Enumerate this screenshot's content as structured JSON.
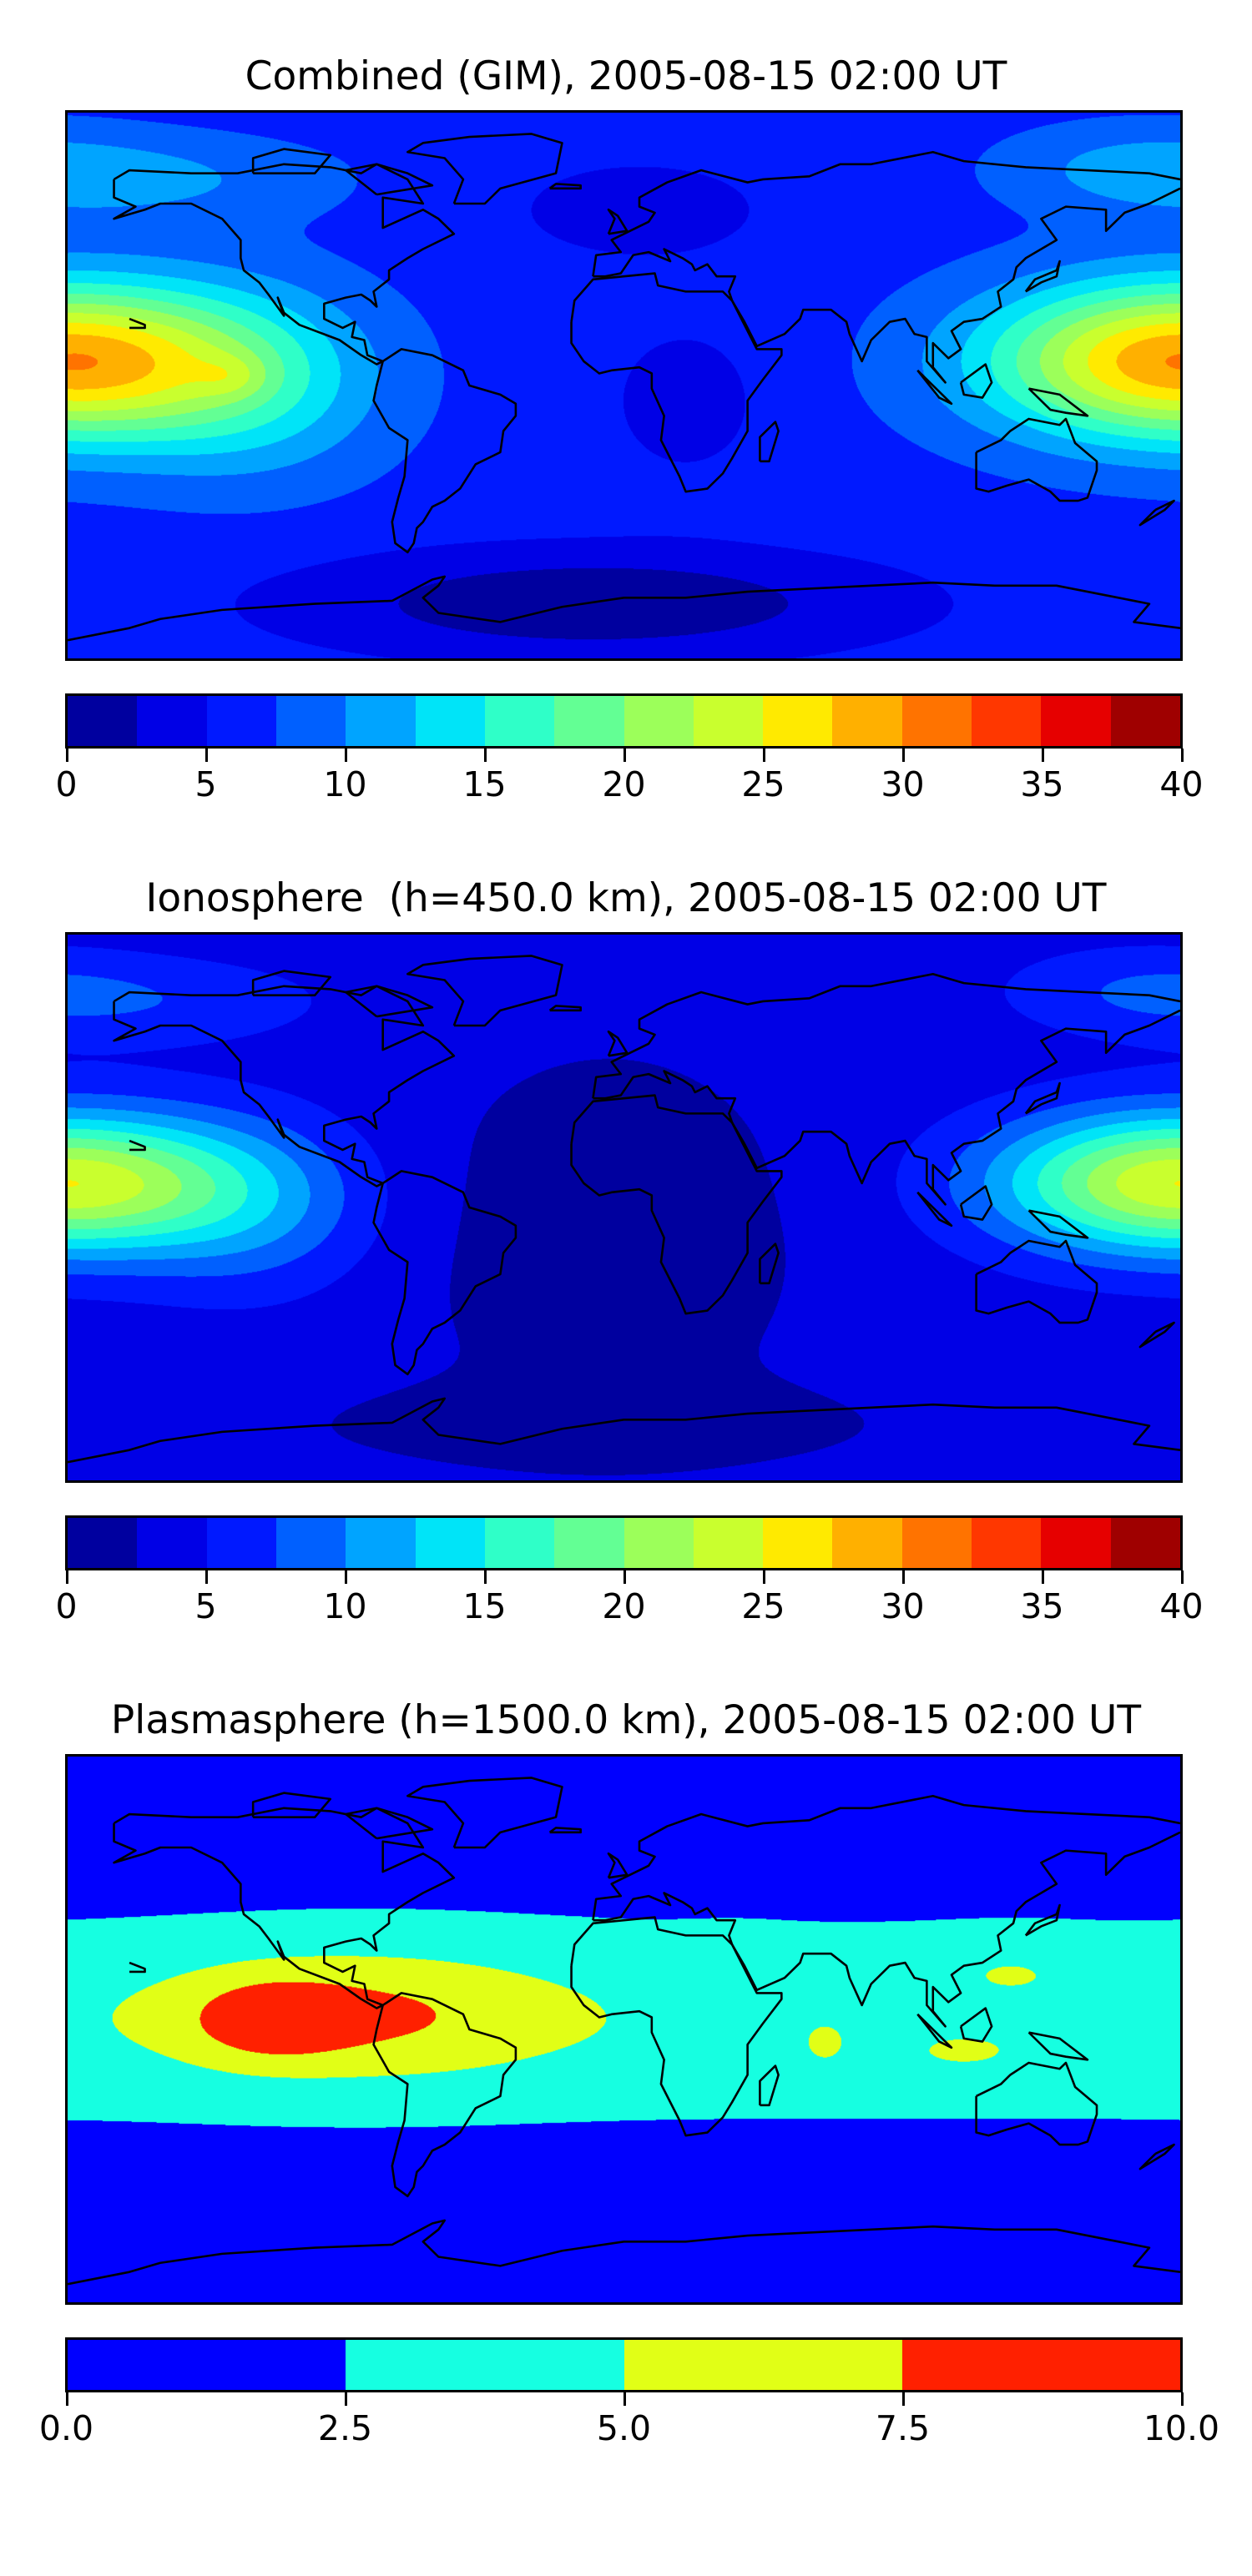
{
  "chart_data": [
    {
      "type": "heatmap",
      "title": "Combined (GIM), 2005-08-15 02:00 UT",
      "lon_range": [
        -180,
        180
      ],
      "lat_range": [
        -90,
        90
      ],
      "field": {
        "base": 6.5,
        "features": [
          {
            "lon": 178,
            "lat": 8,
            "amp": 23,
            "sx": 42,
            "sy": 18
          },
          {
            "lon": -120,
            "lat": 0,
            "amp": 6,
            "sx": 30,
            "sy": 22
          },
          {
            "lon": -127,
            "lat": 3,
            "amp": 3,
            "sx": 8,
            "sy": 5
          },
          {
            "lon": 5,
            "lat": 58,
            "amp": -3,
            "sx": 30,
            "sy": 12
          },
          {
            "lon": -10,
            "lat": -72,
            "amp": -6,
            "sx": 70,
            "sy": 13
          },
          {
            "lon": 20,
            "lat": -5,
            "amp": -2.5,
            "sx": 20,
            "sy": 20
          },
          {
            "lon": -150,
            "lat": 68,
            "amp": 3.5,
            "sx": 40,
            "sy": 10
          },
          {
            "lon": 165,
            "lat": 72,
            "amp": 3.5,
            "sx": 30,
            "sy": 10
          }
        ]
      },
      "colorbar": {
        "levels": [
          0,
          2.5,
          5,
          7.5,
          10,
          12.5,
          15,
          17.5,
          20,
          22.5,
          25,
          27.5,
          30,
          32.5,
          35,
          37.5,
          40
        ],
        "colors": [
          "#00009f",
          "#0000e6",
          "#0019ff",
          "#0060ff",
          "#00a4ff",
          "#00e4f8",
          "#2fffc8",
          "#63ff94",
          "#9cff5a",
          "#c9ff2e",
          "#ffea00",
          "#ffb000",
          "#ff7300",
          "#ff3700",
          "#e60000",
          "#9f0000"
        ],
        "tick_values": [
          0,
          5,
          10,
          15,
          20,
          25,
          30,
          35,
          40
        ],
        "tick_labels": [
          "0",
          "5",
          "10",
          "15",
          "20",
          "25",
          "30",
          "35",
          "40"
        ]
      }
    },
    {
      "type": "heatmap",
      "title": "Ionosphere  (h=450.0 km), 2005-08-15 02:00 UT",
      "lon_range": [
        -180,
        180
      ],
      "lat_range": [
        -90,
        90
      ],
      "field": {
        "base": 3.6,
        "features": [
          {
            "lon": 178,
            "lat": 8,
            "amp": 21,
            "sx": 40,
            "sy": 16
          },
          {
            "lon": -120,
            "lat": 0,
            "amp": 5,
            "sx": 28,
            "sy": 20
          },
          {
            "lon": -5,
            "lat": -10,
            "amp": -2.6,
            "sx": 45,
            "sy": 45
          },
          {
            "lon": -10,
            "lat": -72,
            "amp": -2,
            "sx": 70,
            "sy": 10
          },
          {
            "lon": -150,
            "lat": 68,
            "amp": 3,
            "sx": 40,
            "sy": 10
          },
          {
            "lon": 165,
            "lat": 72,
            "amp": 3,
            "sx": 30,
            "sy": 10
          }
        ]
      },
      "colorbar": {
        "levels": [
          0,
          2.5,
          5,
          7.5,
          10,
          12.5,
          15,
          17.5,
          20,
          22.5,
          25,
          27.5,
          30,
          32.5,
          35,
          37.5,
          40
        ],
        "colors": [
          "#00009f",
          "#0000e6",
          "#0019ff",
          "#0060ff",
          "#00a4ff",
          "#00e4f8",
          "#2fffc8",
          "#63ff94",
          "#9cff5a",
          "#c9ff2e",
          "#ffea00",
          "#ffb000",
          "#ff7300",
          "#ff3700",
          "#e60000",
          "#9f0000"
        ],
        "tick_values": [
          0,
          5,
          10,
          15,
          20,
          25,
          30,
          35,
          40
        ],
        "tick_labels": [
          "0",
          "5",
          "10",
          "15",
          "20",
          "25",
          "30",
          "35",
          "40"
        ]
      }
    },
    {
      "type": "heatmap",
      "title": "Plasmasphere (h=1500.0 km), 2005-08-15 02:00 UT",
      "lon_range": [
        -180,
        180
      ],
      "lat_range": [
        -90,
        90
      ],
      "field": {
        "base": 1.5,
        "features": [
          {
            "lon": 0,
            "lat": 3,
            "amp": 2.7,
            "sx": 1000000,
            "sy": 23
          },
          {
            "lon": -85,
            "lat": 5,
            "amp": 3.8,
            "sx": 45,
            "sy": 15
          },
          {
            "lon": -115,
            "lat": 3,
            "amp": 3.2,
            "sx": 17,
            "sy": 9
          },
          {
            "lon": 125,
            "lat": 20,
            "amp": 1.5,
            "sx": 18,
            "sy": 7
          },
          {
            "lon": 35,
            "lat": 27,
            "amp": 1.3,
            "sx": 12,
            "sy": 4
          },
          {
            "lon": 65,
            "lat": -5,
            "amp": 1.6,
            "sx": 5,
            "sy": 5
          },
          {
            "lon": 110,
            "lat": -8,
            "amp": 1.4,
            "sx": 15,
            "sy": 5
          }
        ]
      },
      "colorbar": {
        "levels": [
          0,
          2.5,
          5,
          7.5,
          10
        ],
        "colors": [
          "#0000ff",
          "#16ffe1",
          "#e1ff16",
          "#ff2000"
        ],
        "tick_values": [
          0,
          2.5,
          5,
          7.5,
          10
        ],
        "tick_labels": [
          "0.0",
          "2.5",
          "5.0",
          "7.5",
          "10.0"
        ]
      }
    }
  ]
}
